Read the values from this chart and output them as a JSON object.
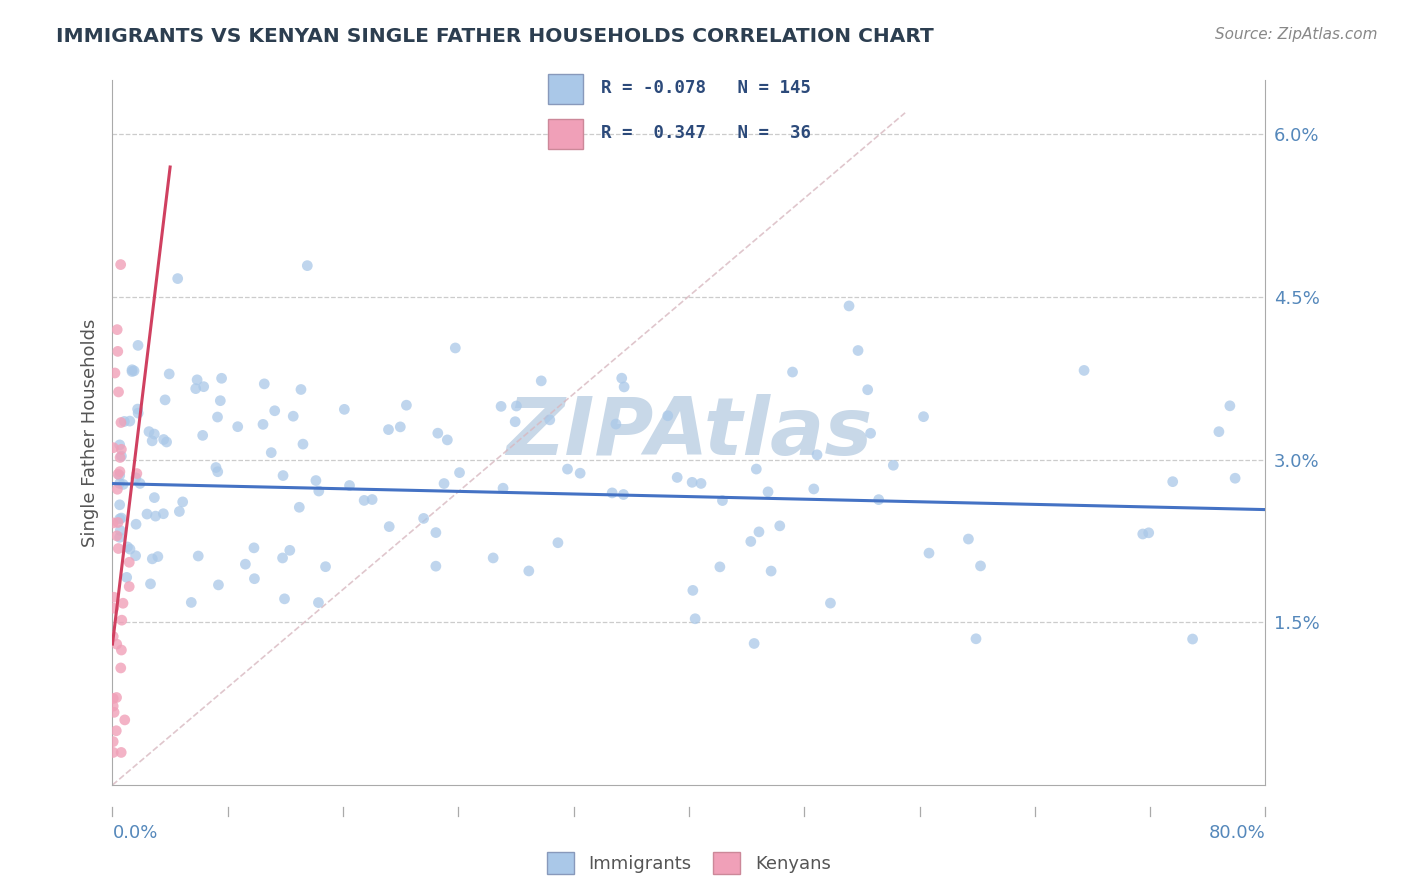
{
  "title": "IMMIGRANTS VS KENYAN SINGLE FATHER HOUSEHOLDS CORRELATION CHART",
  "source": "Source: ZipAtlas.com",
  "ylabel": "Single Father Households",
  "xlim": [
    0.0,
    80.0
  ],
  "ylim": [
    0.0,
    6.5
  ],
  "yticks": [
    1.5,
    3.0,
    4.5,
    6.0
  ],
  "ytick_labels": [
    "1.5%",
    "3.0%",
    "4.5%",
    "6.0%"
  ],
  "immigrants_color": "#aac8e8",
  "kenyans_color": "#f0a0b8",
  "blue_line_color": "#4472c4",
  "pink_line_color": "#d04060",
  "ref_line_color": "#d8b8c0",
  "watermark": "ZIPAtlas",
  "watermark_color": "#c8d8e8",
  "background_color": "#ffffff",
  "grid_color": "#cccccc",
  "tick_label_color": "#5588bb",
  "title_color": "#2c3e50",
  "source_color": "#888888",
  "ylabel_color": "#555555",
  "legend_text_color": "#2c4a7a",
  "bottom_legend_color": "#555555",
  "blue_slope": -0.003,
  "blue_intercept": 2.78,
  "pink_slope_scale": 1.1,
  "pink_intercept": 1.3,
  "seed": 42
}
